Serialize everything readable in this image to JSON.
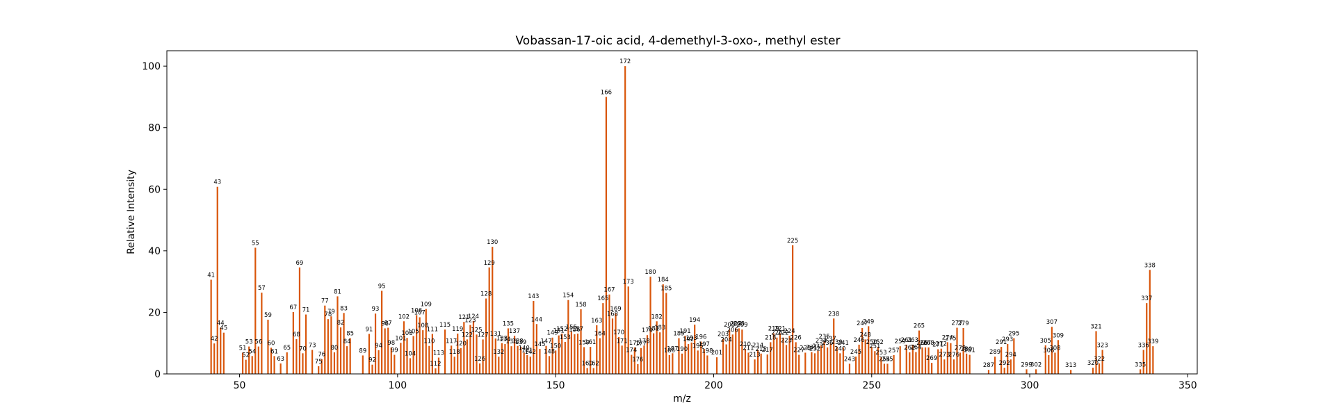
{
  "chart_data": {
    "type": "bar",
    "title": "Vobassan-17-oic acid, 4-demethyl-3-oxo-, methyl ester",
    "xlabel": "m/z",
    "ylabel": "Relative Intensity",
    "xlim": [
      27,
      353
    ],
    "ylim": [
      0,
      105
    ],
    "xticks": [
      50,
      100,
      150,
      200,
      250,
      300,
      350
    ],
    "yticks": [
      0,
      20,
      40,
      60,
      80,
      100
    ],
    "grid": false,
    "bar_color": "#d9560b",
    "peaks": [
      {
        "mz": 41,
        "intensity": 30.6
      },
      {
        "mz": 42,
        "intensity": 9.9
      },
      {
        "mz": 43,
        "intensity": 60.8
      },
      {
        "mz": 44,
        "intensity": 15.0
      },
      {
        "mz": 45,
        "intensity": 13.4
      },
      {
        "mz": 51,
        "intensity": 6.9
      },
      {
        "mz": 52,
        "intensity": 4.6
      },
      {
        "mz": 53,
        "intensity": 8.9
      },
      {
        "mz": 54,
        "intensity": 5.8
      },
      {
        "mz": 55,
        "intensity": 41.0
      },
      {
        "mz": 56,
        "intensity": 8.9
      },
      {
        "mz": 57,
        "intensity": 26.4
      },
      {
        "mz": 59,
        "intensity": 17.6
      },
      {
        "mz": 60,
        "intensity": 8.5
      },
      {
        "mz": 61,
        "intensity": 5.8
      },
      {
        "mz": 63,
        "intensity": 3.4
      },
      {
        "mz": 65,
        "intensity": 7.0
      },
      {
        "mz": 67,
        "intensity": 20.1
      },
      {
        "mz": 68,
        "intensity": 11.3
      },
      {
        "mz": 69,
        "intensity": 34.6
      },
      {
        "mz": 70,
        "intensity": 6.7
      },
      {
        "mz": 71,
        "intensity": 19.3
      },
      {
        "mz": 73,
        "intensity": 7.8
      },
      {
        "mz": 75,
        "intensity": 2.5
      },
      {
        "mz": 76,
        "intensity": 4.8
      },
      {
        "mz": 77,
        "intensity": 22.2
      },
      {
        "mz": 78,
        "intensity": 17.8
      },
      {
        "mz": 79,
        "intensity": 18.7
      },
      {
        "mz": 80,
        "intensity": 7.0
      },
      {
        "mz": 81,
        "intensity": 25.2
      },
      {
        "mz": 82,
        "intensity": 15.1
      },
      {
        "mz": 83,
        "intensity": 19.8
      },
      {
        "mz": 84,
        "intensity": 9.0
      },
      {
        "mz": 85,
        "intensity": 11.6
      },
      {
        "mz": 89,
        "intensity": 6.0
      },
      {
        "mz": 91,
        "intensity": 13.0
      },
      {
        "mz": 92,
        "intensity": 3.0
      },
      {
        "mz": 93,
        "intensity": 19.6
      },
      {
        "mz": 94,
        "intensity": 7.7
      },
      {
        "mz": 95,
        "intensity": 27.0
      },
      {
        "mz": 96,
        "intensity": 14.8
      },
      {
        "mz": 97,
        "intensity": 15.0
      },
      {
        "mz": 98,
        "intensity": 8.6
      },
      {
        "mz": 99,
        "intensity": 6.2
      },
      {
        "mz": 101,
        "intensity": 10.1
      },
      {
        "mz": 102,
        "intensity": 17.1
      },
      {
        "mz": 103,
        "intensity": 11.7
      },
      {
        "mz": 104,
        "intensity": 5.1
      },
      {
        "mz": 105,
        "intensity": 12.3
      },
      {
        "mz": 106,
        "intensity": 19.1
      },
      {
        "mz": 107,
        "intensity": 18.4
      },
      {
        "mz": 108,
        "intensity": 14.2
      },
      {
        "mz": 109,
        "intensity": 21.1
      },
      {
        "mz": 110,
        "intensity": 9.1
      },
      {
        "mz": 111,
        "intensity": 13.0
      },
      {
        "mz": 112,
        "intensity": 1.8
      },
      {
        "mz": 113,
        "intensity": 5.3
      },
      {
        "mz": 115,
        "intensity": 14.4
      },
      {
        "mz": 117,
        "intensity": 9.2
      },
      {
        "mz": 118,
        "intensity": 5.6
      },
      {
        "mz": 119,
        "intensity": 13.1
      },
      {
        "mz": 120,
        "intensity": 8.4
      },
      {
        "mz": 121,
        "intensity": 16.9
      },
      {
        "mz": 122,
        "intensity": 11.2
      },
      {
        "mz": 123,
        "intensity": 15.9
      },
      {
        "mz": 124,
        "intensity": 17.2
      },
      {
        "mz": 125,
        "intensity": 12.8
      },
      {
        "mz": 126,
        "intensity": 3.4
      },
      {
        "mz": 127,
        "intensity": 11.2
      },
      {
        "mz": 128,
        "intensity": 24.5
      },
      {
        "mz": 129,
        "intensity": 34.6
      },
      {
        "mz": 130,
        "intensity": 41.3
      },
      {
        "mz": 131,
        "intensity": 11.5
      },
      {
        "mz": 132,
        "intensity": 5.6
      },
      {
        "mz": 133,
        "intensity": 10.0
      },
      {
        "mz": 134,
        "intensity": 9.7
      },
      {
        "mz": 135,
        "intensity": 14.8
      },
      {
        "mz": 136,
        "intensity": 9.0
      },
      {
        "mz": 137,
        "intensity": 12.4
      },
      {
        "mz": 138,
        "intensity": 9.1
      },
      {
        "mz": 139,
        "intensity": 8.8
      },
      {
        "mz": 140,
        "intensity": 6.9
      },
      {
        "mz": 141,
        "intensity": 6.1
      },
      {
        "mz": 142,
        "intensity": 5.6
      },
      {
        "mz": 143,
        "intensity": 23.7
      },
      {
        "mz": 144,
        "intensity": 16.2
      },
      {
        "mz": 145,
        "intensity": 8.1
      },
      {
        "mz": 147,
        "intensity": 9.1
      },
      {
        "mz": 148,
        "intensity": 5.8
      },
      {
        "mz": 149,
        "intensity": 11.8
      },
      {
        "mz": 150,
        "intensity": 7.6
      },
      {
        "mz": 151,
        "intensity": 12.5
      },
      {
        "mz": 152,
        "intensity": 13.1
      },
      {
        "mz": 153,
        "intensity": 10.4
      },
      {
        "mz": 154,
        "intensity": 24.0
      },
      {
        "mz": 155,
        "intensity": 13.7
      },
      {
        "mz": 156,
        "intensity": 12.9
      },
      {
        "mz": 157,
        "intensity": 13.1
      },
      {
        "mz": 158,
        "intensity": 21.0
      },
      {
        "mz": 159,
        "intensity": 8.7
      },
      {
        "mz": 160,
        "intensity": 1.9
      },
      {
        "mz": 161,
        "intensity": 8.8
      },
      {
        "mz": 162,
        "intensity": 1.9
      },
      {
        "mz": 163,
        "intensity": 15.8
      },
      {
        "mz": 164,
        "intensity": 11.6
      },
      {
        "mz": 165,
        "intensity": 23.0
      },
      {
        "mz": 166,
        "intensity": 90.0
      },
      {
        "mz": 167,
        "intensity": 25.8
      },
      {
        "mz": 168,
        "intensity": 18.0
      },
      {
        "mz": 169,
        "intensity": 19.6
      },
      {
        "mz": 170,
        "intensity": 12.0
      },
      {
        "mz": 171,
        "intensity": 9.2
      },
      {
        "mz": 172,
        "intensity": 100.0
      },
      {
        "mz": 173,
        "intensity": 28.4
      },
      {
        "mz": 174,
        "intensity": 6.2
      },
      {
        "mz": 175,
        "intensity": 8.6
      },
      {
        "mz": 176,
        "intensity": 3.2
      },
      {
        "mz": 177,
        "intensity": 8.4
      },
      {
        "mz": 178,
        "intensity": 9.2
      },
      {
        "mz": 179,
        "intensity": 12.6
      },
      {
        "mz": 180,
        "intensity": 31.6
      },
      {
        "mz": 181,
        "intensity": 13.2
      },
      {
        "mz": 182,
        "intensity": 17.1
      },
      {
        "mz": 183,
        "intensity": 13.5
      },
      {
        "mz": 184,
        "intensity": 29.1
      },
      {
        "mz": 185,
        "intensity": 26.3
      },
      {
        "mz": 186,
        "intensity": 6.1
      },
      {
        "mz": 187,
        "intensity": 6.7
      },
      {
        "mz": 189,
        "intensity": 11.6
      },
      {
        "mz": 190,
        "intensity": 6.6
      },
      {
        "mz": 191,
        "intensity": 12.4
      },
      {
        "mz": 192,
        "intensity": 9.7
      },
      {
        "mz": 193,
        "intensity": 10.2
      },
      {
        "mz": 194,
        "intensity": 16.0
      },
      {
        "mz": 195,
        "intensity": 7.6
      },
      {
        "mz": 196,
        "intensity": 10.5
      },
      {
        "mz": 197,
        "intensity": 8.1
      },
      {
        "mz": 198,
        "intensity": 6.0
      },
      {
        "mz": 201,
        "intensity": 5.4
      },
      {
        "mz": 203,
        "intensity": 11.4
      },
      {
        "mz": 204,
        "intensity": 9.6
      },
      {
        "mz": 205,
        "intensity": 14.4
      },
      {
        "mz": 206,
        "intensity": 12.8
      },
      {
        "mz": 207,
        "intensity": 14.8
      },
      {
        "mz": 208,
        "intensity": 14.8
      },
      {
        "mz": 209,
        "intensity": 14.4
      },
      {
        "mz": 210,
        "intensity": 8.1
      },
      {
        "mz": 211,
        "intensity": 6.9
      },
      {
        "mz": 213,
        "intensity": 4.7
      },
      {
        "mz": 214,
        "intensity": 7.8
      },
      {
        "mz": 215,
        "intensity": 6.6
      },
      {
        "mz": 217,
        "intensity": 6.3
      },
      {
        "mz": 218,
        "intensity": 10.3
      },
      {
        "mz": 219,
        "intensity": 13.2
      },
      {
        "mz": 220,
        "intensity": 11.8
      },
      {
        "mz": 221,
        "intensity": 13.2
      },
      {
        "mz": 222,
        "intensity": 11.8
      },
      {
        "mz": 223,
        "intensity": 9.4
      },
      {
        "mz": 224,
        "intensity": 12.4
      },
      {
        "mz": 225,
        "intensity": 41.8
      },
      {
        "mz": 226,
        "intensity": 10.3
      },
      {
        "mz": 227,
        "intensity": 6.2
      },
      {
        "mz": 229,
        "intensity": 6.9
      },
      {
        "mz": 231,
        "intensity": 7.1
      },
      {
        "mz": 232,
        "intensity": 6.7
      },
      {
        "mz": 233,
        "intensity": 7.5
      },
      {
        "mz": 234,
        "intensity": 9.3
      },
      {
        "mz": 235,
        "intensity": 10.6
      },
      {
        "mz": 236,
        "intensity": 8.6
      },
      {
        "mz": 237,
        "intensity": 9.9
      },
      {
        "mz": 238,
        "intensity": 18.0
      },
      {
        "mz": 239,
        "intensity": 8.8
      },
      {
        "mz": 240,
        "intensity": 6.7
      },
      {
        "mz": 241,
        "intensity": 8.6
      },
      {
        "mz": 243,
        "intensity": 3.3
      },
      {
        "mz": 245,
        "intensity": 5.6
      },
      {
        "mz": 246,
        "intensity": 9.5
      },
      {
        "mz": 247,
        "intensity": 14.9
      },
      {
        "mz": 248,
        "intensity": 11.2
      },
      {
        "mz": 249,
        "intensity": 15.5
      },
      {
        "mz": 250,
        "intensity": 8.8
      },
      {
        "mz": 251,
        "intensity": 7.4
      },
      {
        "mz": 252,
        "intensity": 8.8
      },
      {
        "mz": 253,
        "intensity": 5.4
      },
      {
        "mz": 254,
        "intensity": 3.3
      },
      {
        "mz": 255,
        "intensity": 3.3
      },
      {
        "mz": 257,
        "intensity": 6.1
      },
      {
        "mz": 259,
        "intensity": 9.0
      },
      {
        "mz": 261,
        "intensity": 9.5
      },
      {
        "mz": 262,
        "intensity": 7.0
      },
      {
        "mz": 263,
        "intensity": 9.5
      },
      {
        "mz": 264,
        "intensity": 7.1
      },
      {
        "mz": 265,
        "intensity": 14.1
      },
      {
        "mz": 266,
        "intensity": 8.6
      },
      {
        "mz": 267,
        "intensity": 8.6
      },
      {
        "mz": 268,
        "intensity": 8.6
      },
      {
        "mz": 269,
        "intensity": 3.6
      },
      {
        "mz": 271,
        "intensity": 8.0
      },
      {
        "mz": 272,
        "intensity": 8.2
      },
      {
        "mz": 273,
        "intensity": 4.7
      },
      {
        "mz": 274,
        "intensity": 10.3
      },
      {
        "mz": 275,
        "intensity": 10.0
      },
      {
        "mz": 276,
        "intensity": 4.7
      },
      {
        "mz": 277,
        "intensity": 15.0
      },
      {
        "mz": 278,
        "intensity": 6.9
      },
      {
        "mz": 279,
        "intensity": 14.9
      },
      {
        "mz": 280,
        "intensity": 6.6
      },
      {
        "mz": 281,
        "intensity": 6.2
      },
      {
        "mz": 287,
        "intensity": 1.3
      },
      {
        "mz": 289,
        "intensity": 5.6
      },
      {
        "mz": 291,
        "intensity": 8.8
      },
      {
        "mz": 292,
        "intensity": 2.0
      },
      {
        "mz": 293,
        "intensity": 9.7
      },
      {
        "mz": 294,
        "intensity": 4.7
      },
      {
        "mz": 295,
        "intensity": 11.6
      },
      {
        "mz": 299,
        "intensity": 1.5
      },
      {
        "mz": 302,
        "intensity": 1.5
      },
      {
        "mz": 305,
        "intensity": 9.3
      },
      {
        "mz": 306,
        "intensity": 6.1
      },
      {
        "mz": 307,
        "intensity": 15.3
      },
      {
        "mz": 308,
        "intensity": 6.9
      },
      {
        "mz": 309,
        "intensity": 11.0
      },
      {
        "mz": 313,
        "intensity": 1.3
      },
      {
        "mz": 320,
        "intensity": 2.0
      },
      {
        "mz": 321,
        "intensity": 13.9
      },
      {
        "mz": 322,
        "intensity": 3.4
      },
      {
        "mz": 323,
        "intensity": 7.8
      },
      {
        "mz": 335,
        "intensity": 1.5
      },
      {
        "mz": 336,
        "intensity": 7.8
      },
      {
        "mz": 337,
        "intensity": 23.0
      },
      {
        "mz": 338,
        "intensity": 33.8
      },
      {
        "mz": 339,
        "intensity": 9.0
      }
    ]
  }
}
